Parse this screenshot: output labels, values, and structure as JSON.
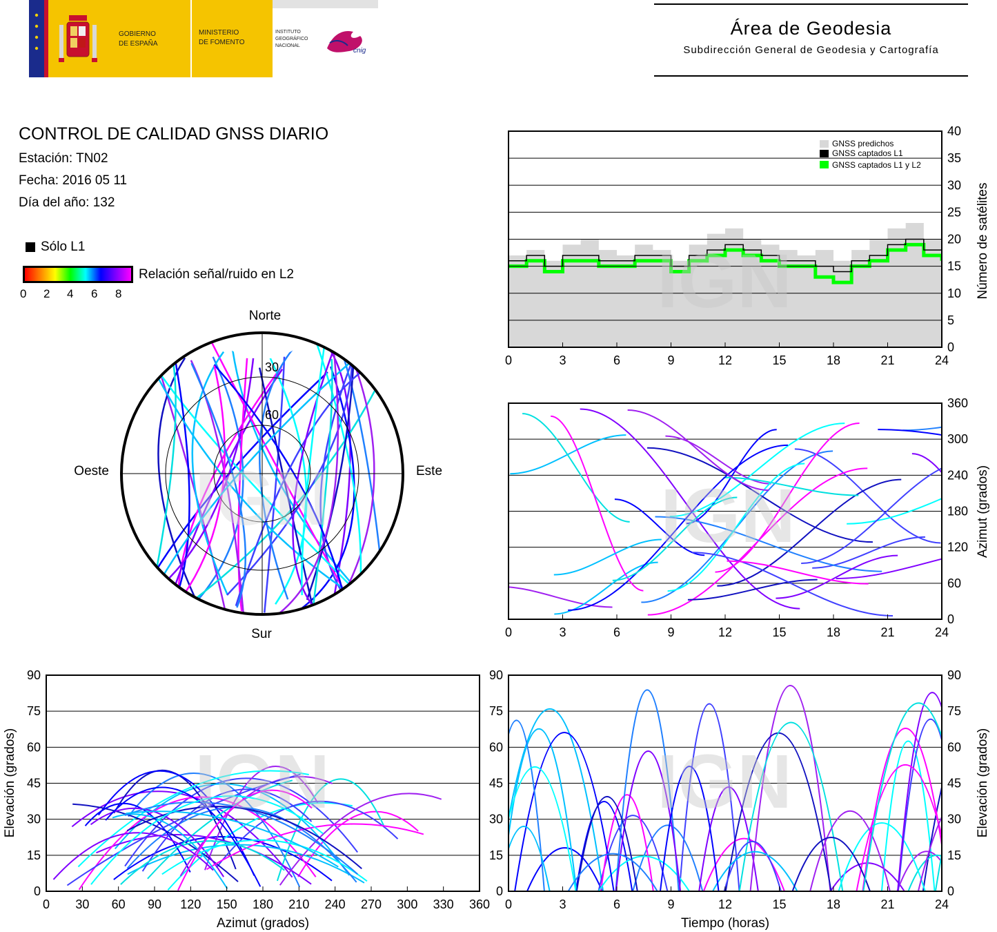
{
  "header": {
    "gov_line1": "GOBIERNO",
    "gov_line2": "DE ESPAÑA",
    "min_line1": "MINISTERIO",
    "min_line2": "DE FOMENTO",
    "ign_line1": "INSTITUTO",
    "ign_line2": "GEOGRÁFICO",
    "ign_line3": "NACIONAL",
    "cnig": "cnig",
    "area_title": "Área de Geodesia",
    "area_subtitle": "Subdirección General de Geodesia y Cartografía"
  },
  "report": {
    "title": "CONTROL DE CALIDAD GNSS DIARIO",
    "station": "Estación: TN02",
    "date": "Fecha: 2016 05 11",
    "doy": "Día del año: 132"
  },
  "legend": {
    "l1_only": "Sólo L1",
    "snr_label": "Relación señal/ruido en L2",
    "ticks": [
      "0",
      "2",
      "4",
      "6",
      "8"
    ]
  },
  "watermark": "IGN",
  "colors": {
    "predicted": "#d8d8d8",
    "l1": "#000000",
    "l1l2": "#00ff00",
    "snr_scale": [
      "#ff0000",
      "#ff8000",
      "#ffff00",
      "#00ff00",
      "#00ffff",
      "#0000ff",
      "#8000ff",
      "#ff00ff"
    ]
  },
  "chart_data": [
    {
      "id": "skyplot",
      "type": "scatter",
      "title": "",
      "directions": {
        "north": "Norte",
        "south": "Sur",
        "east": "Este",
        "west": "Oeste"
      },
      "rings": [
        "30",
        "60"
      ]
    },
    {
      "id": "satellites",
      "type": "area",
      "ylabel": "Número de satélites",
      "xticks": [
        "0",
        "3",
        "6",
        "9",
        "12",
        "15",
        "18",
        "21",
        "24"
      ],
      "yticks": [
        "0",
        "5",
        "10",
        "15",
        "20",
        "25",
        "30",
        "35",
        "40"
      ],
      "xlim": [
        0,
        24
      ],
      "ylim": [
        0,
        40
      ],
      "legend": [
        "GNSS predichos",
        "GNSS captados L1",
        "GNSS captados L1 y L2"
      ],
      "legend_position": "top-right",
      "series": [
        {
          "name": "GNSS predichos",
          "x": [
            0,
            1,
            2,
            3,
            4,
            5,
            6,
            7,
            8,
            9,
            10,
            11,
            12,
            13,
            14,
            15,
            16,
            17,
            18,
            19,
            20,
            21,
            22,
            23,
            24
          ],
          "values": [
            17,
            18,
            16,
            19,
            20,
            18,
            17,
            19,
            18,
            16,
            19,
            21,
            22,
            20,
            19,
            18,
            17,
            18,
            16,
            18,
            20,
            22,
            23,
            20,
            18
          ]
        },
        {
          "name": "GNSS captados L1",
          "x": [
            0,
            1,
            2,
            3,
            4,
            5,
            6,
            7,
            8,
            9,
            10,
            11,
            12,
            13,
            14,
            15,
            16,
            17,
            18,
            19,
            20,
            21,
            22,
            23,
            24
          ],
          "values": [
            16,
            17,
            15,
            17,
            17,
            16,
            16,
            17,
            17,
            15,
            17,
            18,
            19,
            18,
            17,
            16,
            16,
            15,
            14,
            16,
            17,
            19,
            20,
            18,
            17
          ]
        },
        {
          "name": "GNSS captados L1 y L2",
          "x": [
            0,
            1,
            2,
            3,
            4,
            5,
            6,
            7,
            8,
            9,
            10,
            11,
            12,
            13,
            14,
            15,
            16,
            17,
            18,
            19,
            20,
            21,
            22,
            23,
            24
          ],
          "values": [
            15,
            16,
            14,
            16,
            16,
            15,
            15,
            16,
            16,
            14,
            16,
            17,
            18,
            17,
            16,
            15,
            15,
            13,
            12,
            15,
            16,
            18,
            19,
            17,
            16
          ]
        }
      ]
    },
    {
      "id": "azimuth_time",
      "type": "scatter",
      "ylabel": "Azimut (grados)",
      "xticks": [
        "0",
        "3",
        "6",
        "9",
        "12",
        "15",
        "18",
        "21",
        "24"
      ],
      "yticks": [
        "0",
        "60",
        "120",
        "180",
        "240",
        "300",
        "360"
      ],
      "xlim": [
        0,
        24
      ],
      "ylim": [
        0,
        360
      ]
    },
    {
      "id": "elevation_azimuth",
      "type": "scatter",
      "xlabel": "Azimut (grados)",
      "ylabel": "Elevación (grados)",
      "xticks": [
        "0",
        "30",
        "60",
        "90",
        "120",
        "150",
        "180",
        "210",
        "240",
        "270",
        "300",
        "330",
        "360"
      ],
      "yticks": [
        "0",
        "15",
        "30",
        "45",
        "60",
        "75",
        "90"
      ],
      "xlim": [
        0,
        360
      ],
      "ylim": [
        0,
        90
      ]
    },
    {
      "id": "elevation_time",
      "type": "scatter",
      "xlabel": "Tiempo (horas)",
      "ylabel": "Elevación (grados)",
      "xticks": [
        "0",
        "3",
        "6",
        "9",
        "12",
        "15",
        "18",
        "21",
        "24"
      ],
      "yticks": [
        "0",
        "15",
        "30",
        "45",
        "60",
        "75",
        "90"
      ],
      "xlim": [
        0,
        24
      ],
      "ylim": [
        0,
        90
      ]
    }
  ]
}
